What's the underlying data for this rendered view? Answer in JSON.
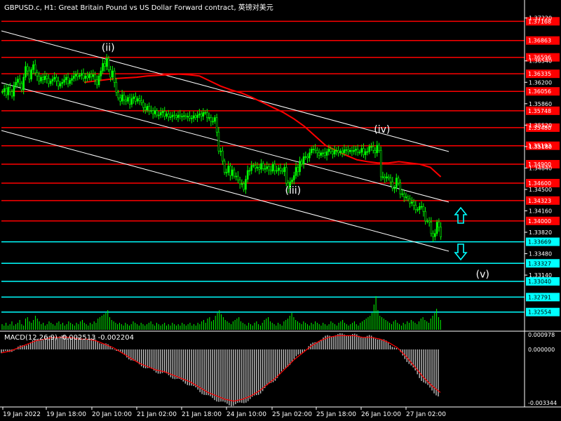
{
  "header": {
    "title": "GBPUSD.c, H1:  Great Britain Pound vs US Dollar Forward contract, 英镑对美元"
  },
  "macd": {
    "title": "MACD(12,26,9) -0.002513 -0.002204",
    "axis_labels": [
      "0.000978",
      "0.000000",
      "-0.003344"
    ]
  },
  "colors": {
    "background": "#000000",
    "candle": "#00ff00",
    "resistance": "#ff0000",
    "support": "#00ffff",
    "ma": "#ff0000",
    "channel": "#ffffff",
    "axis": "#ffffff",
    "volume": "#00ff00",
    "histogram": "#c0c0c0"
  },
  "chart_data": {
    "type": "candlestick",
    "symbol": "GBPUSD.c",
    "timeframe": "H1",
    "ylim": [
      1.3225,
      1.3735
    ],
    "price_ticks": [
      "1.37220",
      "1.36540",
      "1.36200",
      "1.35860",
      "1.35520",
      "1.35180",
      "1.34840",
      "1.34500",
      "1.34160",
      "1.33820",
      "1.33480",
      "1.33140"
    ],
    "price_ticks_values": [
      1.3722,
      1.3654,
      1.362,
      1.3586,
      1.3552,
      1.3518,
      1.3484,
      1.345,
      1.3416,
      1.3382,
      1.3348,
      1.3314
    ],
    "x_labels": [
      "19 Jan 2022",
      "19 Jan 18:00",
      "20 Jan 10:00",
      "21 Jan 02:00",
      "21 Jan 18:00",
      "24 Jan 10:00",
      "25 Jan 02:00",
      "25 Jan 18:00",
      "26 Jan 10:00",
      "27 Jan 02:00"
    ],
    "resistance_levels": [
      1.37168,
      1.36863,
      1.36596,
      1.36335,
      1.36056,
      1.35748,
      1.3548,
      1.35193,
      1.349,
      1.346,
      1.34323,
      1.34
    ],
    "resistance_labels": [
      "1.37168",
      "1.36863",
      "1.36596",
      "1.36335",
      "1.36056",
      "1.35748",
      "1.35480",
      "1.35193",
      "1.34900",
      "1.34600",
      "1.34323",
      "1.34000"
    ],
    "support_levels": [
      1.33669,
      1.33327,
      1.3304,
      1.32791,
      1.32554
    ],
    "support_labels": [
      "1.33669",
      "1.33327",
      "1.33040",
      "1.32791",
      "1.32554"
    ],
    "wave_labels": [
      {
        "text": "(ii)",
        "bar": 55,
        "price": 1.367
      },
      {
        "text": "(iii)",
        "bar": 150,
        "price": 1.3443
      },
      {
        "text": "(iv)",
        "bar": 196,
        "price": 1.354
      },
      {
        "text": "(v)",
        "bar": 247,
        "price": 1.331
      }
    ],
    "close": [
      1.3605,
      1.361,
      1.36,
      1.3612,
      1.3605,
      1.3598,
      1.3615,
      1.362,
      1.3625,
      1.3618,
      1.3608,
      1.3628,
      1.3645,
      1.3638,
      1.3625,
      1.364,
      1.3648,
      1.3635,
      1.363,
      1.3622,
      1.3628,
      1.3624,
      1.363,
      1.3626,
      1.3618,
      1.3622,
      1.3625,
      1.3628,
      1.3622,
      1.3614,
      1.3618,
      1.362,
      1.3624,
      1.3628,
      1.3618,
      1.3623,
      1.3626,
      1.363,
      1.3633,
      1.3629,
      1.3631,
      1.3634,
      1.3626,
      1.363,
      1.3627,
      1.3633,
      1.3629,
      1.3632,
      1.3624,
      1.3616,
      1.363,
      1.3638,
      1.365,
      1.3645,
      1.3658,
      1.364,
      1.3628,
      1.3638,
      1.362,
      1.3604,
      1.3595,
      1.359,
      1.36,
      1.3592,
      1.359,
      1.3596,
      1.3585,
      1.3594,
      1.3597,
      1.359,
      1.3594,
      1.3591,
      1.3588,
      1.358,
      1.3576,
      1.3582,
      1.3575,
      1.3575,
      1.357,
      1.3575,
      1.3568,
      1.3568,
      1.3572,
      1.3574,
      1.3566,
      1.357,
      1.3565,
      1.3565,
      1.3568,
      1.3567,
      1.3564,
      1.3568,
      1.3566,
      1.3566,
      1.3567,
      1.3565,
      1.3566,
      1.3563,
      1.3563,
      1.3567,
      1.3564,
      1.3568,
      1.357,
      1.3566,
      1.3572,
      1.3572,
      1.3564,
      1.3564,
      1.3558,
      1.3558,
      1.3564,
      1.3541,
      1.3511,
      1.3511,
      1.3495,
      1.3477,
      1.3477,
      1.3487,
      1.3472,
      1.3481,
      1.3471,
      1.3471,
      1.3465,
      1.3459,
      1.3459,
      1.345,
      1.3466,
      1.348,
      1.348,
      1.3488,
      1.3488,
      1.3484,
      1.3485,
      1.3482,
      1.3491,
      1.3483,
      1.3483,
      1.3486,
      1.3481,
      1.3479,
      1.349,
      1.348,
      1.348,
      1.3484,
      1.348,
      1.3478,
      1.3485,
      1.346,
      1.3452,
      1.3462,
      1.3465,
      1.3472,
      1.3485,
      1.3478,
      1.3495,
      1.349,
      1.3502,
      1.3502,
      1.35,
      1.3508,
      1.3514,
      1.3514,
      1.3512,
      1.3508,
      1.3504,
      1.3508,
      1.3508,
      1.3504,
      1.351,
      1.3514,
      1.351,
      1.3506,
      1.3512,
      1.3512,
      1.3508,
      1.3511,
      1.3508,
      1.3513,
      1.3513,
      1.351,
      1.3512,
      1.351,
      1.3512,
      1.3514,
      1.3509,
      1.3509,
      1.3515,
      1.3505,
      1.351,
      1.351,
      1.3518,
      1.3518,
      1.3512,
      1.3508,
      1.352,
      1.3512,
      1.347,
      1.347,
      1.3468,
      1.347,
      1.3468,
      1.3462,
      1.3452,
      1.3452,
      1.3468,
      1.346,
      1.3443,
      1.3443,
      1.3438,
      1.3438,
      1.3435,
      1.3428,
      1.343,
      1.3425,
      1.3418,
      1.3418,
      1.3423,
      1.3423,
      1.3415,
      1.34,
      1.34,
      1.3398,
      1.338,
      1.3375,
      1.338,
      1.3398,
      1.339,
      1.3375
    ],
    "ma": [
      1.362,
      1.3622,
      1.3624,
      1.3626,
      1.3627,
      1.3628,
      1.363,
      1.3631,
      1.3632,
      1.3633,
      1.3632,
      1.363,
      1.3622,
      1.3614,
      1.3608,
      1.3603,
      1.3596,
      1.3588,
      1.358,
      1.3572,
      1.3562,
      1.355,
      1.3535,
      1.352,
      1.3512,
      1.3504,
      1.3497,
      1.3494,
      1.3492,
      1.3492,
      1.3494,
      1.3492,
      1.349,
      1.3485,
      1.347
    ]
  },
  "volume": {
    "values": [
      4,
      3,
      5,
      3,
      4,
      6,
      3,
      4,
      5,
      7,
      4,
      3,
      8,
      9,
      6,
      5,
      7,
      10,
      8,
      6,
      4,
      5,
      3,
      4,
      6,
      5,
      4,
      3,
      5,
      6,
      4,
      5,
      3,
      4,
      6,
      5,
      4,
      3,
      5,
      4,
      6,
      7,
      5,
      4,
      3,
      5,
      4,
      6,
      5,
      8,
      9,
      10,
      11,
      12,
      14,
      9,
      7,
      6,
      5,
      4,
      5,
      4,
      3,
      5,
      4,
      3,
      4,
      6,
      5,
      4,
      3,
      5,
      4,
      3,
      4,
      5,
      6,
      4,
      3,
      5,
      4,
      3,
      4,
      5,
      3,
      4,
      3,
      5,
      4,
      3,
      4,
      3,
      5,
      4,
      3,
      4,
      5,
      3,
      4,
      3,
      5,
      4,
      6,
      7,
      5,
      8,
      9,
      6,
      7,
      10,
      12,
      14,
      11,
      9,
      7,
      6,
      5,
      4,
      6,
      7,
      8,
      9,
      6,
      5,
      4,
      3,
      5,
      4,
      3,
      5,
      6,
      4,
      3,
      5,
      7,
      8,
      9,
      6,
      5,
      4,
      3,
      5,
      4,
      3,
      6,
      7,
      8,
      10,
      12,
      9,
      7,
      6,
      5,
      4,
      6,
      5,
      4,
      3,
      5,
      4,
      6,
      5,
      4,
      3,
      5,
      4,
      3,
      4,
      6,
      5,
      4,
      3,
      5,
      6,
      7,
      5,
      4,
      3,
      4,
      5,
      6,
      4,
      3,
      5,
      6,
      7,
      8,
      9,
      10,
      12,
      18,
      24,
      14,
      10,
      9,
      8,
      7,
      6,
      5,
      4,
      6,
      7,
      5,
      4,
      3,
      5,
      4,
      6,
      5,
      7,
      6,
      5,
      4,
      6,
      8,
      9,
      7,
      6,
      5,
      8,
      10,
      12,
      15,
      9,
      7
    ],
    "max": 24
  },
  "macd_series": {
    "signal": [
      -0.0002,
      -0.0001,
      0.0001,
      0.0003,
      0.0005,
      0.0006,
      0.0007,
      0.0007,
      0.0007,
      0.0006,
      0.0006,
      0.0005,
      0.0003,
      0.0001,
      -0.0002,
      -0.0005,
      -0.0008,
      -0.001,
      -0.0012,
      -0.0013,
      -0.0015,
      -0.0017,
      -0.0019,
      -0.0022,
      -0.0025,
      -0.0027,
      -0.0029,
      -0.003,
      -0.0029,
      -0.0027,
      -0.0024,
      -0.002,
      -0.0016,
      -0.0011,
      -0.0006,
      -0.0002,
      0.0002,
      0.0005,
      0.0007,
      0.0008,
      0.0008,
      0.0008,
      0.0007,
      0.0007,
      0.0006,
      0.0004,
      0.0001,
      -0.0004,
      -0.001,
      -0.0016,
      -0.0021,
      -0.0025
    ],
    "histogram_pattern": "mirror"
  }
}
